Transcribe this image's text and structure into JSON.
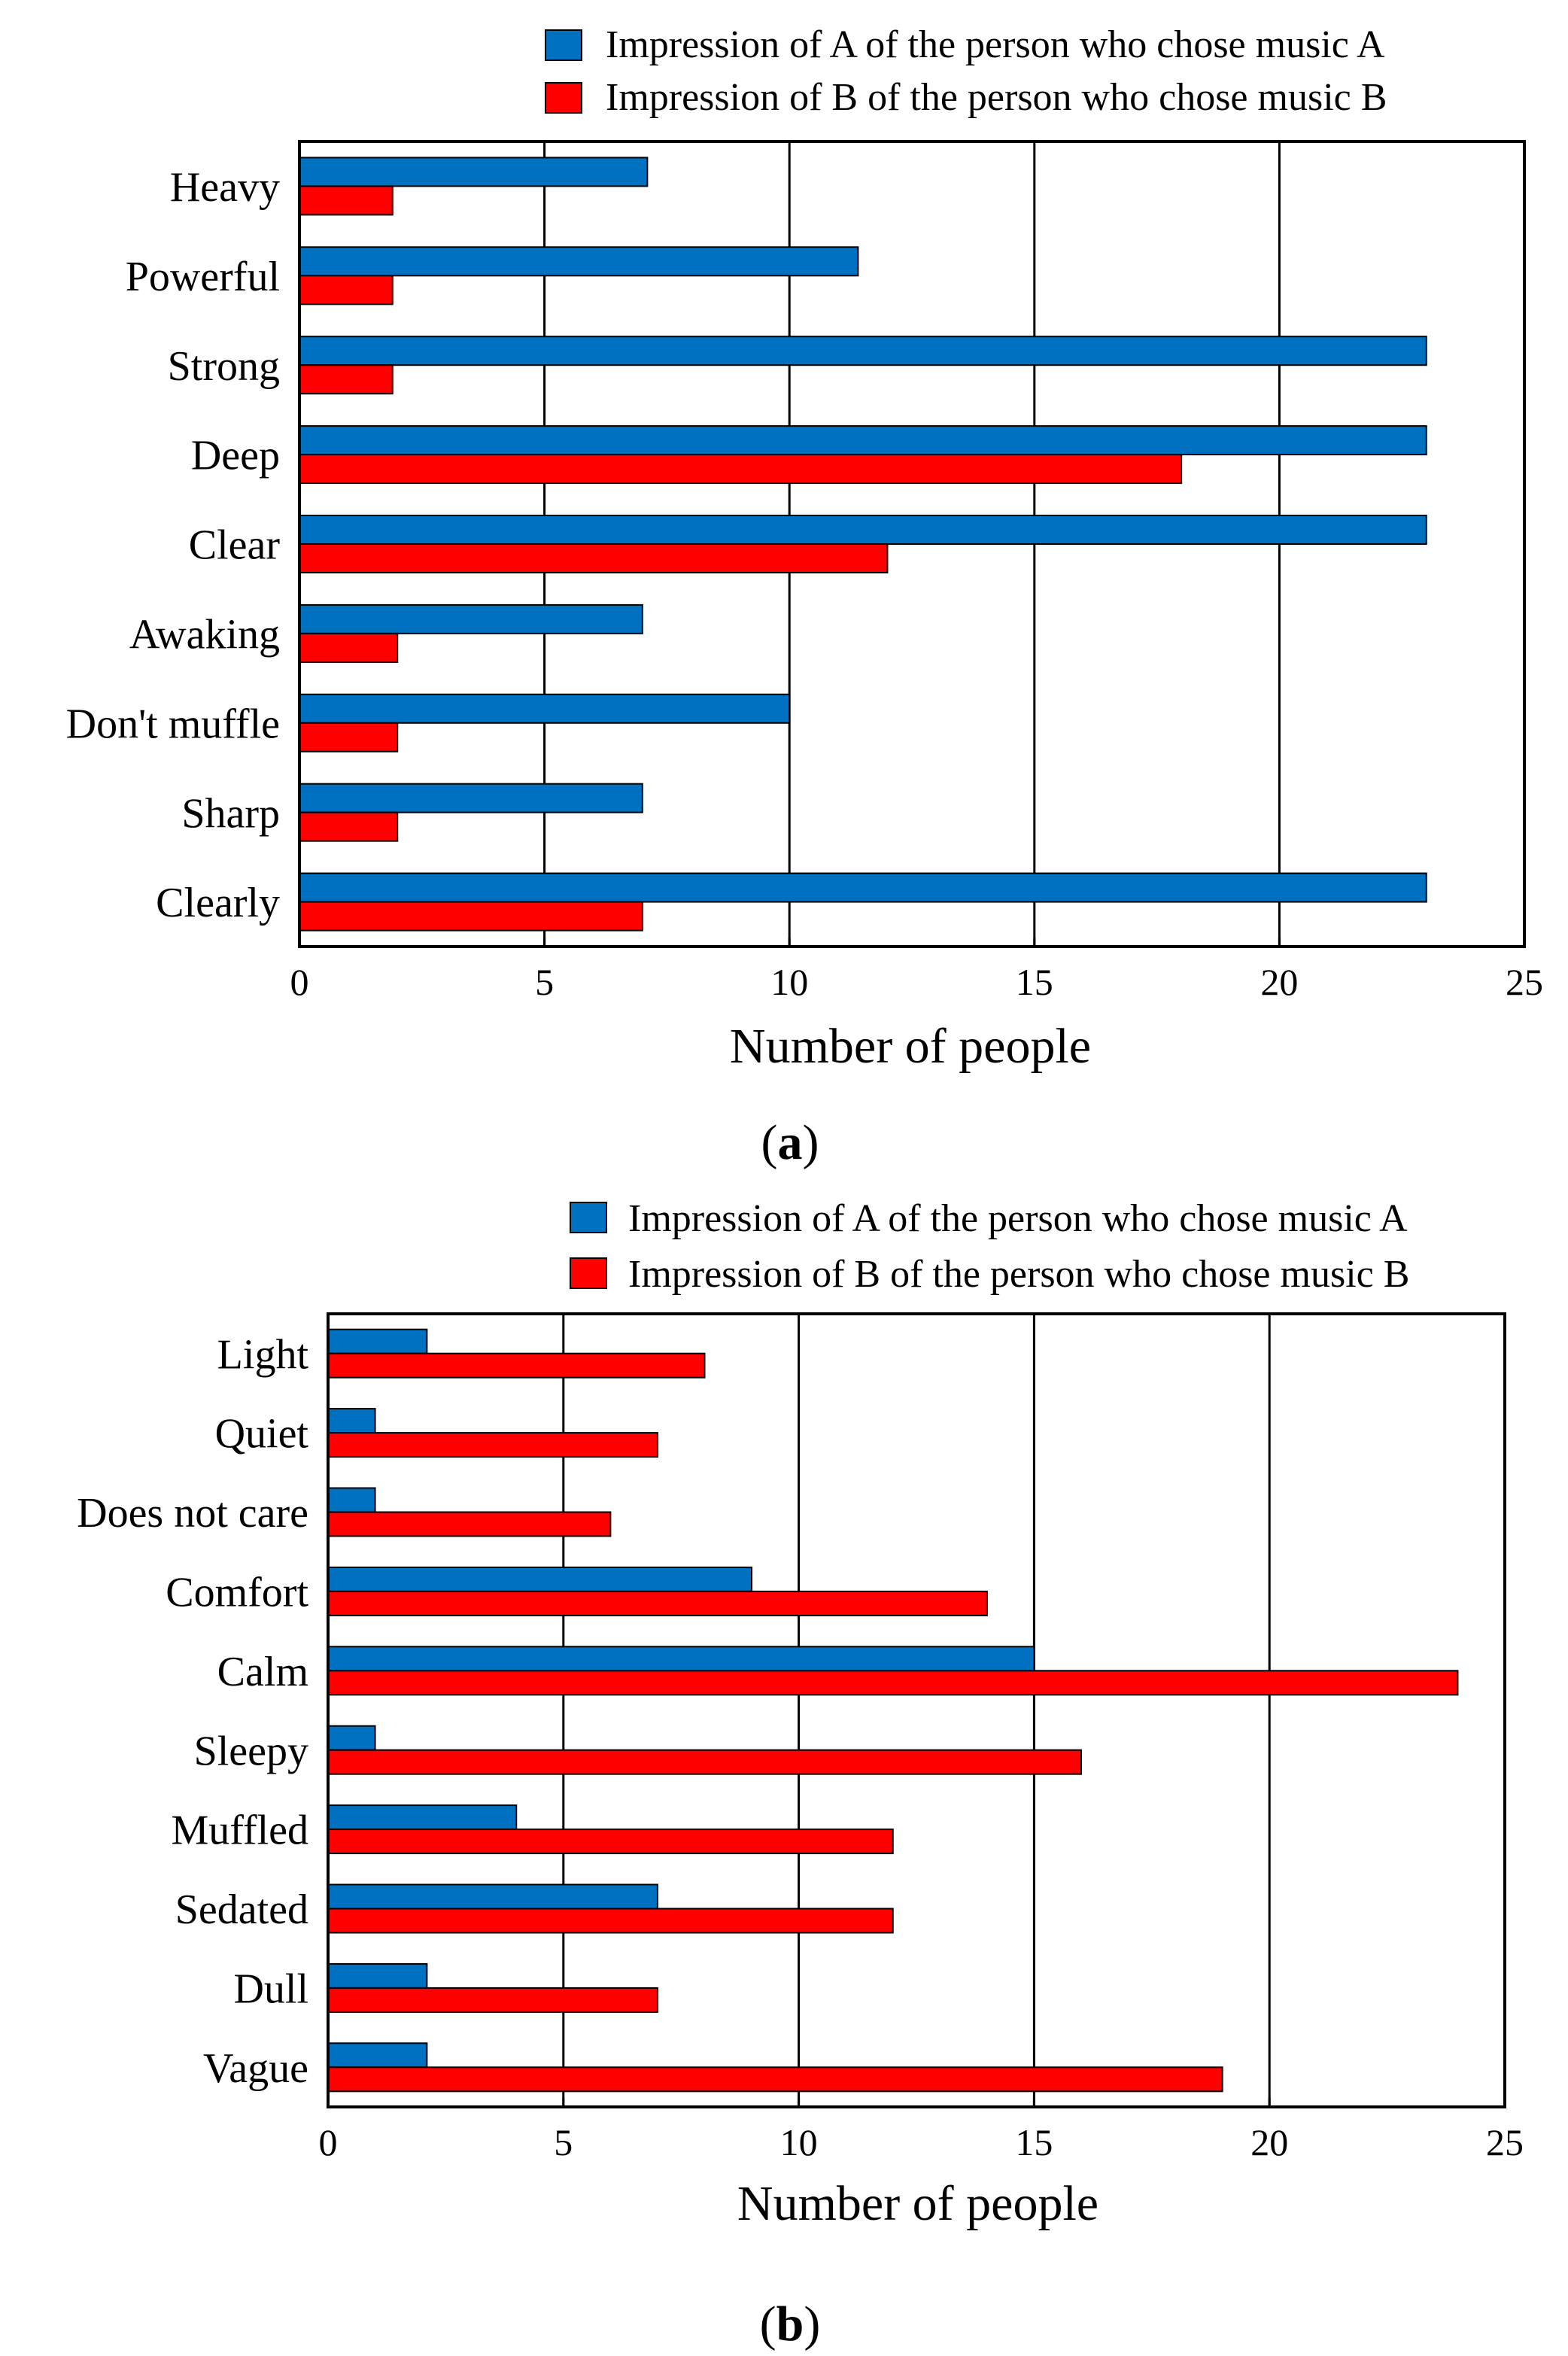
{
  "colors": {
    "series_a": "#0070c0",
    "series_b": "#ff0000",
    "frame": "#000000",
    "grid": "#000000"
  },
  "chart_data": [
    {
      "type": "bar",
      "orientation": "horizontal",
      "panel_label": "a",
      "categories": [
        "Heavy",
        "Powerful",
        "Strong",
        "Deep",
        "Clear",
        "Awaking",
        "Don't muffle",
        "Sharp",
        "Clearly"
      ],
      "series": [
        {
          "name": "Impression of A of the person who chose music A",
          "values": [
            7.1,
            11.4,
            23,
            23,
            23,
            7,
            10,
            7,
            23
          ]
        },
        {
          "name": "Impression of B of the person who chose music B",
          "values": [
            1.9,
            1.9,
            1.9,
            18,
            12,
            2,
            2,
            2,
            7
          ]
        }
      ],
      "xlabel": "Number of people",
      "ylabel": "",
      "xlim": [
        0,
        25
      ],
      "xticks": [
        0,
        5,
        10,
        15,
        20,
        25
      ],
      "grid": "vertical",
      "legend_position": "top-right, above plot"
    },
    {
      "type": "bar",
      "orientation": "horizontal",
      "panel_label": "b",
      "categories": [
        "Light",
        "Quiet",
        "Does not care",
        "Comfort",
        "Calm",
        "Sleepy",
        "Muffled",
        "Sedated",
        "Dull",
        "Vague"
      ],
      "series": [
        {
          "name": "Impression of A of the person who chose music A",
          "values": [
            2.1,
            1,
            1,
            9,
            15,
            1,
            4,
            7,
            2.1,
            2.1
          ]
        },
        {
          "name": "Impression of B of the person who chose music B",
          "values": [
            8,
            7,
            6,
            14,
            24,
            16,
            12,
            12,
            7,
            19
          ]
        }
      ],
      "xlabel": "Number of people",
      "ylabel": "",
      "xlim": [
        0,
        25
      ],
      "xticks": [
        0,
        5,
        10,
        15,
        20,
        25
      ],
      "grid": "vertical",
      "legend_position": "top-right, above plot"
    }
  ]
}
